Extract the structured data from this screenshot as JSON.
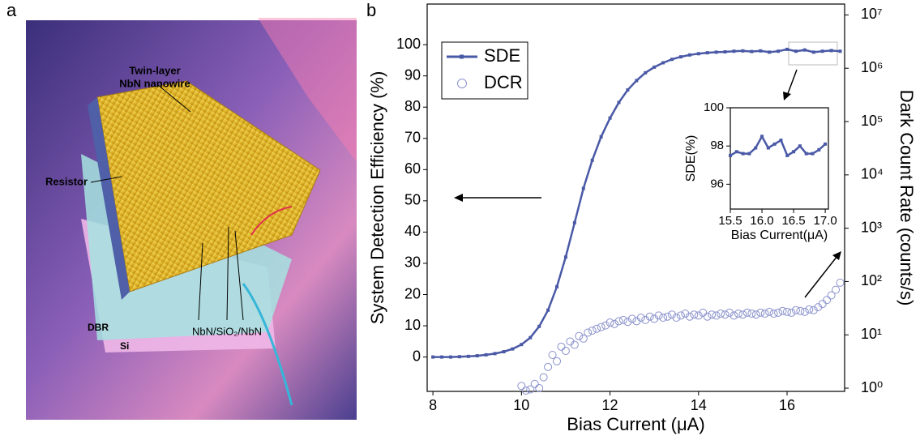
{
  "figure_labels": [
    "a",
    "b"
  ],
  "illustration": {
    "nanowire_label": [
      "Twin-layer",
      "NbN nanowire"
    ],
    "resistor_label": "Resistor",
    "dbr_label": "DBR",
    "si_label": "Si",
    "stack_label": "NbN/SiO₂/NbN"
  },
  "chart_data": [
    {
      "type": "line",
      "xlabel": "Bias Current (μA)",
      "ylabel": "System Detection Efficiency (%)",
      "y2label": "Dark Count Rate (counts/s)",
      "xlim": [
        7.87,
        17.3
      ],
      "xticks": [
        8,
        10,
        12,
        14,
        16
      ],
      "ylim": [
        -11,
        113
      ],
      "yticks": [
        0,
        10,
        20,
        30,
        40,
        50,
        60,
        70,
        80,
        90,
        100
      ],
      "y2scale": "log",
      "y2lim": [
        0.87,
        16000000
      ],
      "y2ticks": [
        {
          "value": 1,
          "label": "10⁰"
        },
        {
          "value": 10,
          "label": "10¹"
        },
        {
          "value": 100,
          "label": "10²"
        },
        {
          "value": 1000,
          "label": "10³"
        },
        {
          "value": 10000,
          "label": "10⁴"
        },
        {
          "value": 100000,
          "label": "10⁵"
        },
        {
          "value": 1000000,
          "label": "10⁶"
        },
        {
          "value": 10000000,
          "label": "10⁷"
        }
      ],
      "legend": "upper left",
      "series": [
        {
          "name": "SDE",
          "color": "#4a59a6",
          "line": true,
          "marker": "square",
          "axis": "y",
          "x": [
            8.0,
            8.2,
            8.4,
            8.6,
            8.8,
            9.0,
            9.2,
            9.4,
            9.6,
            9.8,
            10.0,
            10.2,
            10.4,
            10.6,
            10.8,
            11.0,
            11.2,
            11.4,
            11.6,
            11.8,
            12.0,
            12.2,
            12.4,
            12.6,
            12.8,
            13.0,
            13.2,
            13.4,
            13.6,
            13.8,
            14.0,
            14.2,
            14.4,
            14.6,
            14.8,
            15.0,
            15.2,
            15.4,
            15.6,
            15.8,
            16.0,
            16.2,
            16.4,
            16.6,
            16.8,
            17.0,
            17.2
          ],
          "values": [
            0,
            0,
            0,
            0.1,
            0.2,
            0.4,
            0.7,
            1.1,
            1.7,
            2.6,
            4,
            6.2,
            9.8,
            15,
            22.5,
            32,
            43,
            54,
            63,
            70.5,
            76.5,
            81.5,
            85.5,
            88.5,
            91,
            92.8,
            94.2,
            95.3,
            96.1,
            96.7,
            97.1,
            97.4,
            97.6,
            97.7,
            97.9,
            98,
            97.8,
            98,
            97.6,
            97.9,
            98.5,
            97.9,
            98.3,
            97.6,
            97.9,
            98.1,
            97.9
          ]
        },
        {
          "name": "DCR",
          "color": "#8a92cc",
          "line": false,
          "marker": "circle-open",
          "axis": "y2",
          "x": [
            10.0,
            10.1,
            10.2,
            10.3,
            10.4,
            10.5,
            10.6,
            10.7,
            10.8,
            10.9,
            11.0,
            11.1,
            11.2,
            11.3,
            11.4,
            11.5,
            11.6,
            11.7,
            11.8,
            11.9,
            12.0,
            12.1,
            12.2,
            12.3,
            12.4,
            12.5,
            12.6,
            12.7,
            12.8,
            12.9,
            13.0,
            13.1,
            13.2,
            13.3,
            13.4,
            13.5,
            13.6,
            13.7,
            13.8,
            13.9,
            14.0,
            14.1,
            14.2,
            14.3,
            14.4,
            14.5,
            14.6,
            14.7,
            14.8,
            14.9,
            15.0,
            15.1,
            15.2,
            15.3,
            15.4,
            15.5,
            15.6,
            15.7,
            15.8,
            15.9,
            16.0,
            16.1,
            16.2,
            16.3,
            16.4,
            16.5,
            16.6,
            16.7,
            16.8,
            16.9,
            17.0,
            17.1,
            17.2
          ],
          "values": [
            1.1,
            0.9,
            0.95,
            1.2,
            1.0,
            1.6,
            2.5,
            4.2,
            3.2,
            6.0,
            5.0,
            7.5,
            6.5,
            9.5,
            8.5,
            11,
            12,
            13,
            14,
            15,
            17,
            16,
            18,
            19,
            17.5,
            20,
            18,
            21,
            19,
            22,
            20,
            23,
            21,
            22,
            24,
            21,
            23,
            25,
            22,
            24,
            23,
            26,
            22,
            24,
            23,
            25,
            24,
            26,
            23,
            25,
            24,
            26,
            25,
            24,
            26,
            25,
            27,
            25,
            26,
            28,
            27,
            26,
            29,
            28,
            27,
            30,
            29,
            33,
            38,
            45,
            55,
            70,
            95
          ]
        }
      ]
    },
    {
      "type": "line",
      "xlabel": "Bias Current(μA)",
      "ylabel": "SDE(%)",
      "xlim": [
        15.5,
        17.05
      ],
      "xticks": [
        15.5,
        {
          "value": 16,
          "label": "16.0"
        },
        16.5,
        {
          "value": 17,
          "label": "17.0"
        }
      ],
      "ylim": [
        94.7,
        100
      ],
      "yticks": [
        96,
        98,
        100
      ],
      "series": [
        {
          "name": "SDE",
          "color": "#4a59a6",
          "line": true,
          "marker": "square",
          "axis": "y",
          "x": [
            15.5,
            15.6,
            15.7,
            15.8,
            15.9,
            16.0,
            16.1,
            16.2,
            16.3,
            16.4,
            16.5,
            16.6,
            16.7,
            16.8,
            16.9,
            17.0
          ],
          "values": [
            97.5,
            97.7,
            97.6,
            97.6,
            97.9,
            98.5,
            97.9,
            98.1,
            98.3,
            97.5,
            97.7,
            98.0,
            97.6,
            97.6,
            97.8,
            98.1
          ]
        }
      ]
    }
  ]
}
